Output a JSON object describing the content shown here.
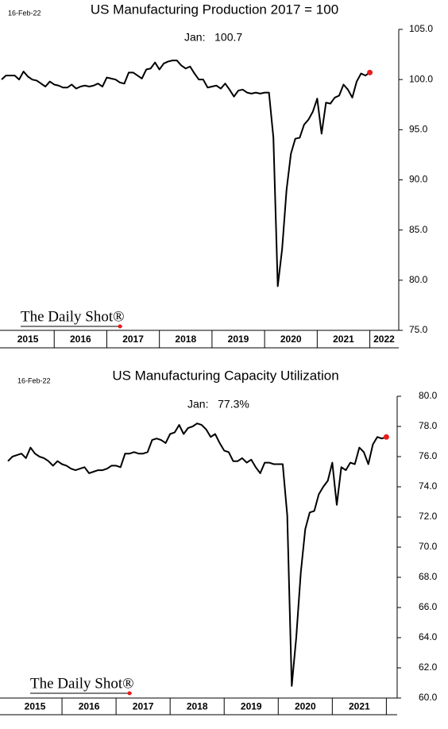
{
  "chart_data": [
    {
      "type": "line",
      "title": "US Manufacturing Production 2017 = 100",
      "date": "16-Feb-22",
      "annotation": "Jan:   100.7",
      "logo": "The Daily Shot®",
      "x": [
        2015,
        2015.083,
        2015.167,
        2015.25,
        2015.333,
        2015.417,
        2015.5,
        2015.583,
        2015.667,
        2015.75,
        2015.833,
        2015.917,
        2016,
        2016.083,
        2016.167,
        2016.25,
        2016.333,
        2016.417,
        2016.5,
        2016.583,
        2016.667,
        2016.75,
        2016.833,
        2016.917,
        2017,
        2017.083,
        2017.167,
        2017.25,
        2017.333,
        2017.417,
        2017.5,
        2017.583,
        2017.667,
        2017.75,
        2017.833,
        2017.917,
        2018,
        2018.083,
        2018.167,
        2018.25,
        2018.333,
        2018.417,
        2018.5,
        2018.583,
        2018.667,
        2018.75,
        2018.833,
        2018.917,
        2019,
        2019.083,
        2019.167,
        2019.25,
        2019.333,
        2019.417,
        2019.5,
        2019.583,
        2019.667,
        2019.75,
        2019.833,
        2019.917,
        2020,
        2020.083,
        2020.167,
        2020.25,
        2020.333,
        2020.417,
        2020.5,
        2020.583,
        2020.667,
        2020.75,
        2020.833,
        2020.917,
        2021,
        2021.083,
        2021.167,
        2021.25,
        2021.333,
        2021.417,
        2021.5,
        2021.583,
        2021.667,
        2021.75,
        2021.833,
        2021.917,
        2022
      ],
      "series": [
        {
          "color": "#000000",
          "values": [
            100.0,
            100.4,
            100.4,
            100.4,
            100.0,
            100.8,
            100.3,
            100.0,
            99.9,
            99.6,
            99.3,
            99.8,
            99.5,
            99.4,
            99.2,
            99.2,
            99.5,
            99.1,
            99.3,
            99.4,
            99.3,
            99.4,
            99.6,
            99.3,
            100.2,
            100.1,
            100.0,
            99.7,
            99.6,
            100.7,
            100.7,
            100.4,
            100.1,
            101.0,
            101.1,
            101.7,
            101.0,
            101.6,
            101.8,
            101.9,
            101.9,
            101.4,
            101.1,
            101.3,
            100.6,
            100.0,
            100.0,
            99.2,
            99.3,
            99.4,
            99.1,
            99.6,
            99.0,
            98.3,
            98.9,
            99.0,
            98.7,
            98.6,
            98.7,
            98.6,
            98.7,
            98.7,
            94.2,
            79.4,
            83.1,
            89.0,
            92.6,
            94.1,
            94.2,
            95.5,
            96.0,
            96.8,
            98.1,
            94.6,
            97.7,
            97.6,
            98.2,
            98.4,
            99.5,
            99.0,
            98.2,
            99.8,
            100.6,
            100.4,
            100.7
          ]
        }
      ],
      "highlight_color": "#e81c1c",
      "xlim": [
        2015,
        2022.55
      ],
      "xticks": [
        2016,
        2017,
        2018,
        2019,
        2020,
        2021,
        2022
      ],
      "xlabels": [
        {
          "value": 2015.5,
          "label": "2015"
        },
        {
          "value": 2016.5,
          "label": "2016"
        },
        {
          "value": 2017.5,
          "label": "2017"
        },
        {
          "value": 2018.5,
          "label": "2018"
        },
        {
          "value": 2019.5,
          "label": "2019"
        },
        {
          "value": 2020.5,
          "label": "2020"
        },
        {
          "value": 2021.5,
          "label": "2021"
        },
        {
          "value": 2022.27,
          "label": "2022"
        }
      ],
      "ylim": [
        75,
        105
      ],
      "yticks": [
        {
          "value": 75,
          "label": "75.0"
        },
        {
          "value": 80,
          "label": "80.0"
        },
        {
          "value": 85,
          "label": "85.0"
        },
        {
          "value": 90,
          "label": "90.0"
        },
        {
          "value": 95,
          "label": "95.0"
        },
        {
          "value": 100,
          "label": "100.0"
        },
        {
          "value": 105,
          "label": "105.0"
        }
      ]
    },
    {
      "type": "line",
      "title": "US Manufacturing Capacity Utilization",
      "date": "16-Feb-22",
      "annotation": "Jan:   77.3%",
      "logo": "The Daily Shot®",
      "x": [
        2015,
        2015.083,
        2015.167,
        2015.25,
        2015.333,
        2015.417,
        2015.5,
        2015.583,
        2015.667,
        2015.75,
        2015.833,
        2015.917,
        2016,
        2016.083,
        2016.167,
        2016.25,
        2016.333,
        2016.417,
        2016.5,
        2016.583,
        2016.667,
        2016.75,
        2016.833,
        2016.917,
        2017,
        2017.083,
        2017.167,
        2017.25,
        2017.333,
        2017.417,
        2017.5,
        2017.583,
        2017.667,
        2017.75,
        2017.833,
        2017.917,
        2018,
        2018.083,
        2018.167,
        2018.25,
        2018.333,
        2018.417,
        2018.5,
        2018.583,
        2018.667,
        2018.75,
        2018.833,
        2018.917,
        2019,
        2019.083,
        2019.167,
        2019.25,
        2019.333,
        2019.417,
        2019.5,
        2019.583,
        2019.667,
        2019.75,
        2019.833,
        2019.917,
        2020,
        2020.083,
        2020.167,
        2020.25,
        2020.333,
        2020.417,
        2020.5,
        2020.583,
        2020.667,
        2020.75,
        2020.833,
        2020.917,
        2021,
        2021.083,
        2021.167,
        2021.25,
        2021.333,
        2021.417,
        2021.5,
        2021.583,
        2021.667,
        2021.75,
        2021.833,
        2021.917,
        2022
      ],
      "series": [
        {
          "color": "#000000",
          "values": [
            75.7,
            76.0,
            76.1,
            76.2,
            75.9,
            76.6,
            76.2,
            76.0,
            75.9,
            75.7,
            75.4,
            75.7,
            75.5,
            75.4,
            75.2,
            75.1,
            75.2,
            75.3,
            74.9,
            75.0,
            75.1,
            75.1,
            75.2,
            75.4,
            75.4,
            75.3,
            76.2,
            76.2,
            76.3,
            76.2,
            76.2,
            76.3,
            77.1,
            77.2,
            77.1,
            76.9,
            77.5,
            77.6,
            78.1,
            77.5,
            77.9,
            78.0,
            78.2,
            78.1,
            77.8,
            77.3,
            77.5,
            76.9,
            76.4,
            76.3,
            75.7,
            75.7,
            75.9,
            75.6,
            75.8,
            75.3,
            74.9,
            75.6,
            75.6,
            75.5,
            75.5,
            75.5,
            72.1,
            60.8,
            64.0,
            68.3,
            71.2,
            72.3,
            72.4,
            73.5,
            74.0,
            74.4,
            75.6,
            72.8,
            75.3,
            75.1,
            75.6,
            75.5,
            76.6,
            76.3,
            75.5,
            76.8,
            77.3,
            77.2,
            77.3
          ]
        }
      ],
      "highlight_color": "#e81c1c",
      "xlim": [
        2015,
        2022.2
      ],
      "xticks": [
        2016,
        2017,
        2018,
        2019,
        2020,
        2021,
        2022
      ],
      "xlabels": [
        {
          "value": 2015.5,
          "label": "2015"
        },
        {
          "value": 2016.5,
          "label": "2016"
        },
        {
          "value": 2017.5,
          "label": "2017"
        },
        {
          "value": 2018.5,
          "label": "2018"
        },
        {
          "value": 2019.5,
          "label": "2019"
        },
        {
          "value": 2020.5,
          "label": "2020"
        },
        {
          "value": 2021.5,
          "label": "2021"
        }
      ],
      "ylim": [
        60,
        80
      ],
      "yticks": [
        {
          "value": 60,
          "label": "60.0"
        },
        {
          "value": 62,
          "label": "62.0"
        },
        {
          "value": 64,
          "label": "64.0"
        },
        {
          "value": 66,
          "label": "66.0"
        },
        {
          "value": 68,
          "label": "68.0"
        },
        {
          "value": 70,
          "label": "70.0"
        },
        {
          "value": 72,
          "label": "72.0"
        },
        {
          "value": 74,
          "label": "74.0"
        },
        {
          "value": 76,
          "label": "76.0"
        },
        {
          "value": 78,
          "label": "78.0"
        },
        {
          "value": 80,
          "label": "80.0"
        }
      ]
    }
  ]
}
